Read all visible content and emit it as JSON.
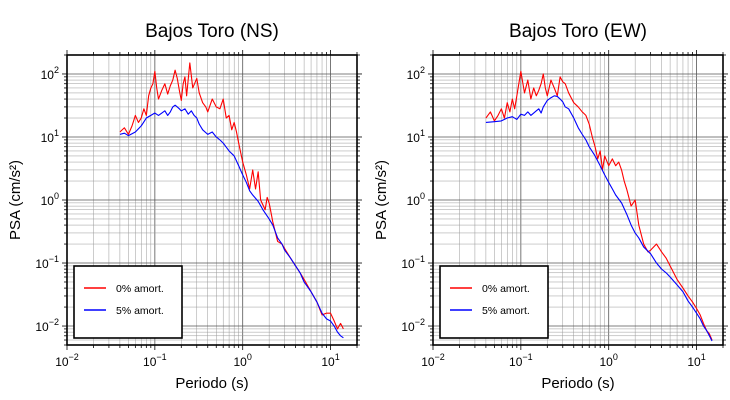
{
  "chart_data": [
    {
      "type": "line",
      "title": "Bajos Toro (NS)",
      "xlabel": "Periodo (s)",
      "ylabel": "PSA (cm/s²)",
      "xscale": "log",
      "yscale": "log",
      "xlim": [
        0.01,
        20
      ],
      "ylim": [
        0.005,
        200
      ],
      "grid": true,
      "legend_position": "bottom-left",
      "x_tick_labels": [
        {
          "value": 0.01,
          "base": "10",
          "exp": "−2"
        },
        {
          "value": 0.1,
          "base": "10",
          "exp": "−1"
        },
        {
          "value": 1,
          "base": "10",
          "exp": "0"
        },
        {
          "value": 10,
          "base": "10",
          "exp": "1"
        }
      ],
      "y_tick_labels": [
        {
          "value": 0.01,
          "base": "10",
          "exp": "−2"
        },
        {
          "value": 0.1,
          "base": "10",
          "exp": "−1"
        },
        {
          "value": 1,
          "base": "10",
          "exp": "0"
        },
        {
          "value": 10,
          "base": "10",
          "exp": "1"
        },
        {
          "value": 100,
          "base": "10",
          "exp": "2"
        }
      ],
      "series": [
        {
          "name": "0% amort.",
          "color": "#ff0000",
          "points": [
            [
              0.04,
              12
            ],
            [
              0.045,
              14
            ],
            [
              0.05,
              11
            ],
            [
              0.055,
              15
            ],
            [
              0.06,
              22
            ],
            [
              0.065,
              17
            ],
            [
              0.07,
              20
            ],
            [
              0.075,
              28
            ],
            [
              0.08,
              22
            ],
            [
              0.085,
              45
            ],
            [
              0.09,
              60
            ],
            [
              0.095,
              70
            ],
            [
              0.1,
              110
            ],
            [
              0.105,
              60
            ],
            [
              0.11,
              40
            ],
            [
              0.12,
              55
            ],
            [
              0.13,
              70
            ],
            [
              0.14,
              48
            ],
            [
              0.15,
              65
            ],
            [
              0.16,
              80
            ],
            [
              0.17,
              115
            ],
            [
              0.18,
              85
            ],
            [
              0.19,
              55
            ],
            [
              0.2,
              38
            ],
            [
              0.21,
              70
            ],
            [
              0.22,
              90
            ],
            [
              0.23,
              45
            ],
            [
              0.25,
              150
            ],
            [
              0.27,
              60
            ],
            [
              0.3,
              85
            ],
            [
              0.32,
              50
            ],
            [
              0.35,
              35
            ],
            [
              0.38,
              30
            ],
            [
              0.4,
              25
            ],
            [
              0.45,
              40
            ],
            [
              0.5,
              30
            ],
            [
              0.55,
              28
            ],
            [
              0.6,
              40
            ],
            [
              0.65,
              20
            ],
            [
              0.7,
              22
            ],
            [
              0.75,
              13
            ],
            [
              0.8,
              17
            ],
            [
              0.85,
              12
            ],
            [
              0.9,
              8
            ],
            [
              1.0,
              4
            ],
            [
              1.1,
              2.5
            ],
            [
              1.2,
              1.5
            ],
            [
              1.3,
              3
            ],
            [
              1.4,
              1.5
            ],
            [
              1.5,
              2.8
            ],
            [
              1.6,
              1.0
            ],
            [
              1.8,
              0.7
            ],
            [
              1.9,
              1.1
            ],
            [
              2.0,
              0.9
            ],
            [
              2.2,
              0.45
            ],
            [
              2.5,
              0.22
            ],
            [
              2.8,
              0.2
            ],
            [
              3.0,
              0.17
            ],
            [
              3.5,
              0.12
            ],
            [
              4.0,
              0.09
            ],
            [
              4.5,
              0.07
            ],
            [
              5.0,
              0.055
            ],
            [
              6.0,
              0.035
            ],
            [
              7.0,
              0.024
            ],
            [
              8.0,
              0.015
            ],
            [
              9.0,
              0.016
            ],
            [
              10.0,
              0.016
            ],
            [
              11.0,
              0.012
            ],
            [
              12.0,
              0.009
            ],
            [
              13.0,
              0.011
            ],
            [
              14.0,
              0.009
            ]
          ]
        },
        {
          "name": "5% amort.",
          "color": "#0000ff",
          "points": [
            [
              0.04,
              11
            ],
            [
              0.045,
              11.5
            ],
            [
              0.05,
              10.5
            ],
            [
              0.06,
              12
            ],
            [
              0.07,
              15
            ],
            [
              0.08,
              20
            ],
            [
              0.09,
              22
            ],
            [
              0.1,
              24
            ],
            [
              0.11,
              22
            ],
            [
              0.12,
              24
            ],
            [
              0.13,
              26
            ],
            [
              0.14,
              22
            ],
            [
              0.15,
              25
            ],
            [
              0.16,
              30
            ],
            [
              0.17,
              32
            ],
            [
              0.18,
              30
            ],
            [
              0.19,
              28
            ],
            [
              0.2,
              26
            ],
            [
              0.22,
              28
            ],
            [
              0.24,
              23
            ],
            [
              0.26,
              26
            ],
            [
              0.28,
              22
            ],
            [
              0.3,
              20
            ],
            [
              0.32,
              16
            ],
            [
              0.35,
              13
            ],
            [
              0.4,
              11
            ],
            [
              0.45,
              12
            ],
            [
              0.5,
              10
            ],
            [
              0.55,
              9
            ],
            [
              0.6,
              8
            ],
            [
              0.7,
              6
            ],
            [
              0.8,
              5
            ],
            [
              0.9,
              3.5
            ],
            [
              1.0,
              2.5
            ],
            [
              1.1,
              1.9
            ],
            [
              1.2,
              1.4
            ],
            [
              1.3,
              1.2
            ],
            [
              1.5,
              0.95
            ],
            [
              1.7,
              0.7
            ],
            [
              2.0,
              0.5
            ],
            [
              2.2,
              0.4
            ],
            [
              2.5,
              0.25
            ],
            [
              2.8,
              0.2
            ],
            [
              3.0,
              0.16
            ],
            [
              3.5,
              0.12
            ],
            [
              4.0,
              0.09
            ],
            [
              4.5,
              0.07
            ],
            [
              5.0,
              0.05
            ],
            [
              6.0,
              0.035
            ],
            [
              7.0,
              0.024
            ],
            [
              8.0,
              0.016
            ],
            [
              9.0,
              0.013
            ],
            [
              10.0,
              0.012
            ],
            [
              11.0,
              0.01
            ],
            [
              12.0,
              0.008
            ],
            [
              13.0,
              0.007
            ],
            [
              14.0,
              0.0065
            ]
          ]
        }
      ]
    },
    {
      "type": "line",
      "title": "Bajos Toro (EW)",
      "xlabel": "Periodo (s)",
      "ylabel": "PSA (cm/s²)",
      "xscale": "log",
      "yscale": "log",
      "xlim": [
        0.01,
        20
      ],
      "ylim": [
        0.005,
        200
      ],
      "grid": true,
      "legend_position": "bottom-left",
      "x_tick_labels": [
        {
          "value": 0.01,
          "base": "10",
          "exp": "−2"
        },
        {
          "value": 0.1,
          "base": "10",
          "exp": "−1"
        },
        {
          "value": 1,
          "base": "10",
          "exp": "0"
        },
        {
          "value": 10,
          "base": "10",
          "exp": "1"
        }
      ],
      "y_tick_labels": [
        {
          "value": 0.01,
          "base": "10",
          "exp": "−2"
        },
        {
          "value": 0.1,
          "base": "10",
          "exp": "−1"
        },
        {
          "value": 1,
          "base": "10",
          "exp": "0"
        },
        {
          "value": 10,
          "base": "10",
          "exp": "1"
        },
        {
          "value": 100,
          "base": "10",
          "exp": "2"
        }
      ],
      "series": [
        {
          "name": "0% amort.",
          "color": "#ff0000",
          "points": [
            [
              0.04,
              20
            ],
            [
              0.045,
              25
            ],
            [
              0.05,
              18
            ],
            [
              0.055,
              22
            ],
            [
              0.06,
              28
            ],
            [
              0.065,
              20
            ],
            [
              0.07,
              35
            ],
            [
              0.075,
              25
            ],
            [
              0.08,
              40
            ],
            [
              0.085,
              28
            ],
            [
              0.09,
              45
            ],
            [
              0.1,
              110
            ],
            [
              0.11,
              50
            ],
            [
              0.12,
              80
            ],
            [
              0.13,
              40
            ],
            [
              0.14,
              60
            ],
            [
              0.15,
              45
            ],
            [
              0.16,
              55
            ],
            [
              0.17,
              70
            ],
            [
              0.18,
              100
            ],
            [
              0.19,
              60
            ],
            [
              0.2,
              45
            ],
            [
              0.22,
              80
            ],
            [
              0.24,
              60
            ],
            [
              0.26,
              45
            ],
            [
              0.28,
              90
            ],
            [
              0.3,
              75
            ],
            [
              0.32,
              70
            ],
            [
              0.35,
              50
            ],
            [
              0.4,
              35
            ],
            [
              0.45,
              30
            ],
            [
              0.5,
              25
            ],
            [
              0.55,
              22
            ],
            [
              0.6,
              16
            ],
            [
              0.65,
              10
            ],
            [
              0.7,
              7
            ],
            [
              0.75,
              4.5
            ],
            [
              0.8,
              6
            ],
            [
              0.85,
              3
            ],
            [
              0.9,
              5
            ],
            [
              1.0,
              3.5
            ],
            [
              1.1,
              4.5
            ],
            [
              1.2,
              3.5
            ],
            [
              1.3,
              4
            ],
            [
              1.4,
              3
            ],
            [
              1.5,
              2
            ],
            [
              1.6,
              1.5
            ],
            [
              1.8,
              0.8
            ],
            [
              2.0,
              1.0
            ],
            [
              2.2,
              0.4
            ],
            [
              2.5,
              0.2
            ],
            [
              2.8,
              0.15
            ],
            [
              3.0,
              0.16
            ],
            [
              3.5,
              0.2
            ],
            [
              4.0,
              0.15
            ],
            [
              4.5,
              0.12
            ],
            [
              5.0,
              0.09
            ],
            [
              6.0,
              0.055
            ],
            [
              7.0,
              0.04
            ],
            [
              8.0,
              0.03
            ],
            [
              9.0,
              0.024
            ],
            [
              10.0,
              0.019
            ],
            [
              11.0,
              0.015
            ],
            [
              12.0,
              0.011
            ],
            [
              13.0,
              0.0085
            ],
            [
              14.0,
              0.0075
            ],
            [
              15.0,
              0.006
            ]
          ]
        },
        {
          "name": "5% amort.",
          "color": "#0000ff",
          "points": [
            [
              0.04,
              17
            ],
            [
              0.05,
              17.5
            ],
            [
              0.06,
              18
            ],
            [
              0.07,
              20
            ],
            [
              0.08,
              21
            ],
            [
              0.09,
              19
            ],
            [
              0.1,
              23
            ],
            [
              0.11,
              22
            ],
            [
              0.12,
              25
            ],
            [
              0.13,
              22
            ],
            [
              0.14,
              24
            ],
            [
              0.15,
              26
            ],
            [
              0.16,
              28
            ],
            [
              0.17,
              24
            ],
            [
              0.18,
              30
            ],
            [
              0.2,
              38
            ],
            [
              0.22,
              42
            ],
            [
              0.24,
              45
            ],
            [
              0.26,
              44
            ],
            [
              0.28,
              40
            ],
            [
              0.3,
              36
            ],
            [
              0.32,
              30
            ],
            [
              0.35,
              28
            ],
            [
              0.4,
              20
            ],
            [
              0.45,
              14
            ],
            [
              0.5,
              11
            ],
            [
              0.55,
              9
            ],
            [
              0.6,
              7
            ],
            [
              0.7,
              5
            ],
            [
              0.8,
              3.5
            ],
            [
              0.9,
              2.5
            ],
            [
              1.0,
              1.9
            ],
            [
              1.1,
              1.5
            ],
            [
              1.2,
              1.2
            ],
            [
              1.4,
              0.9
            ],
            [
              1.6,
              0.6
            ],
            [
              1.8,
              0.4
            ],
            [
              2.0,
              0.3
            ],
            [
              2.2,
              0.25
            ],
            [
              2.5,
              0.18
            ],
            [
              3.0,
              0.14
            ],
            [
              3.5,
              0.1
            ],
            [
              4.0,
              0.08
            ],
            [
              4.5,
              0.07
            ],
            [
              5.0,
              0.06
            ],
            [
              6.0,
              0.045
            ],
            [
              7.0,
              0.035
            ],
            [
              8.0,
              0.025
            ],
            [
              9.0,
              0.02
            ],
            [
              10.0,
              0.016
            ],
            [
              11.0,
              0.013
            ],
            [
              12.0,
              0.01
            ],
            [
              13.0,
              0.0085
            ],
            [
              14.0,
              0.007
            ],
            [
              15.0,
              0.0058
            ]
          ]
        }
      ]
    }
  ]
}
